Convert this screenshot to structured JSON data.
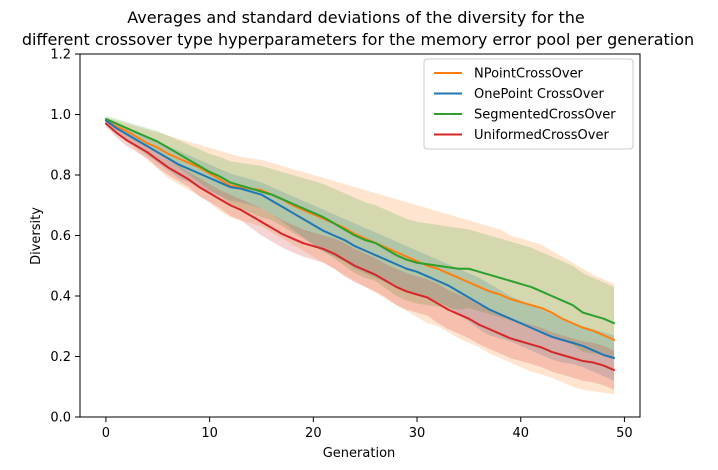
{
  "chart_data": {
    "type": "line",
    "title_line1": "Averages and standard deviations of the diversity for the",
    "title_line2": "different crossover type hyperparameters for the memory error pool per generation",
    "xlabel": "Generation",
    "ylabel": "Diversity",
    "xlim": [
      -2.5,
      51.5
    ],
    "ylim": [
      0.0,
      1.2
    ],
    "xticks": [
      0,
      10,
      20,
      30,
      40,
      50
    ],
    "xtick_labels": [
      "0",
      "10",
      "20",
      "30",
      "40",
      "50"
    ],
    "yticks": [
      0.0,
      0.2,
      0.4,
      0.6,
      0.8,
      1.0,
      1.2
    ],
    "ytick_labels": [
      "0.0",
      "0.2",
      "0.4",
      "0.6",
      "0.8",
      "1.0",
      "1.2"
    ],
    "grid": false,
    "legend_position": "top-right",
    "x": [
      0,
      1,
      2,
      3,
      4,
      5,
      6,
      7,
      8,
      9,
      10,
      11,
      12,
      13,
      14,
      15,
      16,
      17,
      18,
      19,
      20,
      21,
      22,
      23,
      24,
      25,
      26,
      27,
      28,
      29,
      30,
      31,
      32,
      33,
      34,
      35,
      36,
      37,
      38,
      39,
      40,
      41,
      42,
      43,
      44,
      45,
      46,
      47,
      48,
      49
    ],
    "series": [
      {
        "name": "NPointCrossOver",
        "color": "#ff7f0e",
        "values": [
          0.98,
          0.96,
          0.945,
          0.925,
          0.905,
          0.89,
          0.87,
          0.855,
          0.84,
          0.825,
          0.805,
          0.785,
          0.765,
          0.76,
          0.755,
          0.75,
          0.735,
          0.72,
          0.7,
          0.685,
          0.67,
          0.655,
          0.64,
          0.625,
          0.605,
          0.59,
          0.575,
          0.56,
          0.545,
          0.53,
          0.515,
          0.5,
          0.49,
          0.475,
          0.46,
          0.445,
          0.43,
          0.415,
          0.405,
          0.39,
          0.38,
          0.37,
          0.36,
          0.345,
          0.325,
          0.31,
          0.295,
          0.285,
          0.27,
          0.255
        ],
        "std_upper": [
          0.99,
          0.98,
          0.97,
          0.96,
          0.95,
          0.94,
          0.93,
          0.92,
          0.91,
          0.9,
          0.89,
          0.88,
          0.87,
          0.86,
          0.855,
          0.85,
          0.84,
          0.83,
          0.82,
          0.81,
          0.8,
          0.79,
          0.78,
          0.77,
          0.76,
          0.75,
          0.74,
          0.73,
          0.72,
          0.71,
          0.7,
          0.69,
          0.68,
          0.67,
          0.66,
          0.65,
          0.64,
          0.63,
          0.62,
          0.6,
          0.59,
          0.58,
          0.57,
          0.55,
          0.53,
          0.51,
          0.49,
          0.47,
          0.455,
          0.44
        ],
        "std_lower": [
          0.97,
          0.94,
          0.91,
          0.88,
          0.85,
          0.82,
          0.79,
          0.77,
          0.75,
          0.73,
          0.71,
          0.68,
          0.66,
          0.65,
          0.64,
          0.63,
          0.61,
          0.59,
          0.57,
          0.55,
          0.53,
          0.51,
          0.49,
          0.47,
          0.45,
          0.43,
          0.41,
          0.39,
          0.37,
          0.35,
          0.33,
          0.31,
          0.3,
          0.28,
          0.26,
          0.245,
          0.23,
          0.21,
          0.195,
          0.18,
          0.165,
          0.15,
          0.14,
          0.13,
          0.115,
          0.1,
          0.09,
          0.085,
          0.08,
          0.075
        ]
      },
      {
        "name": "OnePoint CrossOver",
        "color": "#1f77b4",
        "values": [
          0.98,
          0.955,
          0.935,
          0.915,
          0.895,
          0.875,
          0.855,
          0.835,
          0.82,
          0.805,
          0.79,
          0.775,
          0.76,
          0.755,
          0.745,
          0.735,
          0.715,
          0.695,
          0.675,
          0.655,
          0.635,
          0.615,
          0.6,
          0.585,
          0.565,
          0.55,
          0.535,
          0.52,
          0.505,
          0.49,
          0.48,
          0.465,
          0.45,
          0.435,
          0.415,
          0.395,
          0.375,
          0.355,
          0.34,
          0.325,
          0.31,
          0.295,
          0.28,
          0.265,
          0.255,
          0.245,
          0.235,
          0.22,
          0.205,
          0.195
        ],
        "std_upper": [
          0.99,
          0.97,
          0.955,
          0.94,
          0.925,
          0.91,
          0.895,
          0.88,
          0.865,
          0.85,
          0.835,
          0.82,
          0.805,
          0.795,
          0.785,
          0.775,
          0.76,
          0.745,
          0.73,
          0.715,
          0.7,
          0.685,
          0.67,
          0.655,
          0.64,
          0.625,
          0.61,
          0.595,
          0.58,
          0.565,
          0.55,
          0.535,
          0.52,
          0.505,
          0.49,
          0.475,
          0.46,
          0.44,
          0.42,
          0.4,
          0.385,
          0.37,
          0.355,
          0.34,
          0.325,
          0.31,
          0.3,
          0.29,
          0.28,
          0.27
        ],
        "std_lower": [
          0.97,
          0.94,
          0.915,
          0.89,
          0.865,
          0.84,
          0.815,
          0.79,
          0.775,
          0.76,
          0.745,
          0.73,
          0.715,
          0.71,
          0.7,
          0.69,
          0.67,
          0.645,
          0.62,
          0.595,
          0.57,
          0.545,
          0.53,
          0.515,
          0.49,
          0.475,
          0.46,
          0.445,
          0.43,
          0.415,
          0.41,
          0.395,
          0.38,
          0.365,
          0.34,
          0.315,
          0.29,
          0.27,
          0.26,
          0.25,
          0.235,
          0.22,
          0.205,
          0.19,
          0.18,
          0.175,
          0.165,
          0.15,
          0.135,
          0.12
        ]
      },
      {
        "name": "SegmentedCrossOver",
        "color": "#2ca02c",
        "values": [
          0.985,
          0.97,
          0.955,
          0.94,
          0.925,
          0.91,
          0.89,
          0.87,
          0.85,
          0.83,
          0.81,
          0.795,
          0.775,
          0.765,
          0.755,
          0.745,
          0.735,
          0.72,
          0.705,
          0.69,
          0.675,
          0.66,
          0.64,
          0.62,
          0.6,
          0.585,
          0.575,
          0.555,
          0.535,
          0.52,
          0.51,
          0.505,
          0.5,
          0.495,
          0.49,
          0.49,
          0.48,
          0.47,
          0.46,
          0.45,
          0.44,
          0.43,
          0.415,
          0.4,
          0.385,
          0.37,
          0.345,
          0.335,
          0.325,
          0.31
        ],
        "std_upper": [
          0.995,
          0.985,
          0.975,
          0.965,
          0.955,
          0.945,
          0.93,
          0.915,
          0.9,
          0.885,
          0.87,
          0.86,
          0.845,
          0.84,
          0.835,
          0.83,
          0.82,
          0.81,
          0.8,
          0.79,
          0.78,
          0.77,
          0.755,
          0.74,
          0.725,
          0.71,
          0.7,
          0.685,
          0.67,
          0.655,
          0.645,
          0.64,
          0.635,
          0.63,
          0.625,
          0.62,
          0.61,
          0.6,
          0.59,
          0.58,
          0.57,
          0.56,
          0.545,
          0.53,
          0.515,
          0.5,
          0.475,
          0.46,
          0.445,
          0.43
        ],
        "std_lower": [
          0.975,
          0.955,
          0.935,
          0.915,
          0.895,
          0.875,
          0.85,
          0.825,
          0.8,
          0.775,
          0.75,
          0.73,
          0.705,
          0.69,
          0.675,
          0.66,
          0.65,
          0.63,
          0.61,
          0.59,
          0.57,
          0.55,
          0.525,
          0.5,
          0.475,
          0.46,
          0.45,
          0.425,
          0.4,
          0.385,
          0.375,
          0.37,
          0.365,
          0.36,
          0.355,
          0.36,
          0.35,
          0.34,
          0.33,
          0.32,
          0.31,
          0.3,
          0.285,
          0.27,
          0.255,
          0.24,
          0.215,
          0.21,
          0.205,
          0.19
        ]
      },
      {
        "name": "UniformedCrossOver",
        "color": "#d62728",
        "values": [
          0.97,
          0.94,
          0.915,
          0.895,
          0.875,
          0.85,
          0.825,
          0.805,
          0.785,
          0.76,
          0.74,
          0.72,
          0.7,
          0.685,
          0.665,
          0.645,
          0.625,
          0.605,
          0.59,
          0.575,
          0.565,
          0.555,
          0.54,
          0.52,
          0.5,
          0.485,
          0.47,
          0.45,
          0.43,
          0.415,
          0.405,
          0.395,
          0.375,
          0.355,
          0.34,
          0.325,
          0.305,
          0.29,
          0.275,
          0.26,
          0.25,
          0.24,
          0.23,
          0.215,
          0.205,
          0.195,
          0.185,
          0.18,
          0.17,
          0.155
        ],
        "std_upper": [
          0.98,
          0.955,
          0.935,
          0.915,
          0.895,
          0.875,
          0.85,
          0.83,
          0.81,
          0.79,
          0.77,
          0.75,
          0.735,
          0.72,
          0.705,
          0.69,
          0.67,
          0.65,
          0.635,
          0.62,
          0.61,
          0.6,
          0.59,
          0.575,
          0.555,
          0.54,
          0.525,
          0.505,
          0.49,
          0.475,
          0.465,
          0.455,
          0.44,
          0.42,
          0.405,
          0.39,
          0.37,
          0.355,
          0.34,
          0.325,
          0.315,
          0.305,
          0.295,
          0.28,
          0.27,
          0.26,
          0.25,
          0.245,
          0.235,
          0.22
        ],
        "std_lower": [
          0.96,
          0.925,
          0.895,
          0.875,
          0.855,
          0.825,
          0.8,
          0.78,
          0.76,
          0.73,
          0.71,
          0.69,
          0.665,
          0.65,
          0.625,
          0.6,
          0.58,
          0.56,
          0.545,
          0.53,
          0.52,
          0.51,
          0.49,
          0.465,
          0.445,
          0.43,
          0.415,
          0.395,
          0.37,
          0.355,
          0.345,
          0.335,
          0.31,
          0.29,
          0.275,
          0.26,
          0.24,
          0.225,
          0.21,
          0.195,
          0.185,
          0.175,
          0.165,
          0.15,
          0.14,
          0.13,
          0.12,
          0.115,
          0.105,
          0.09
        ]
      }
    ]
  }
}
